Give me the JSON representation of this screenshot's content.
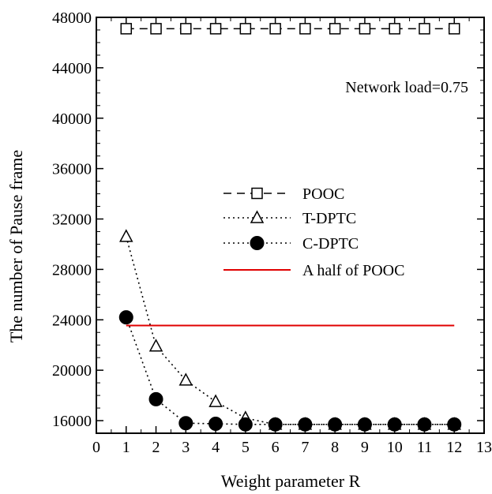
{
  "chart_data": {
    "type": "line",
    "xlabel": "Weight parameter R",
    "ylabel": "The number of Pause frame",
    "xlim": [
      0,
      13
    ],
    "ylim": [
      15000,
      48000
    ],
    "xticks": [
      "0",
      "1",
      "2",
      "3",
      "4",
      "5",
      "6",
      "7",
      "8",
      "9",
      "10",
      "11",
      "12",
      "13"
    ],
    "yticks": [
      "16000",
      "20000",
      "24000",
      "28000",
      "32000",
      "36000",
      "40000",
      "44000",
      "48000"
    ],
    "annotation": "Network load=0.75",
    "grid": false,
    "legend_position": "center-right",
    "series": [
      {
        "name": "POOC",
        "style": "dashed",
        "marker": "open-square",
        "color": "#000000",
        "x": [
          1,
          2,
          3,
          4,
          5,
          6,
          7,
          8,
          9,
          10,
          11,
          12
        ],
        "y": [
          47100,
          47100,
          47100,
          47100,
          47100,
          47100,
          47100,
          47100,
          47100,
          47100,
          47100,
          47100
        ]
      },
      {
        "name": "T-DPTC",
        "style": "dotted",
        "marker": "open-triangle",
        "color": "#000000",
        "x": [
          1,
          2,
          3,
          4,
          5,
          6,
          7,
          8,
          9,
          10,
          11,
          12
        ],
        "y": [
          30600,
          21900,
          19200,
          17500,
          16200,
          15700,
          15700,
          15700,
          15700,
          15700,
          15700,
          15700
        ]
      },
      {
        "name": "C-DPTC",
        "style": "dotted",
        "marker": "filled-circle",
        "color": "#000000",
        "x": [
          1,
          2,
          3,
          4,
          5,
          6,
          7,
          8,
          9,
          10,
          11,
          12
        ],
        "y": [
          24200,
          17700,
          15800,
          15750,
          15700,
          15700,
          15700,
          15700,
          15700,
          15700,
          15700,
          15700
        ]
      },
      {
        "name": "A half of POOC",
        "style": "solid",
        "marker": "none",
        "color": "#e00000",
        "x": [
          1,
          12
        ],
        "y": [
          23550,
          23550
        ]
      }
    ]
  }
}
